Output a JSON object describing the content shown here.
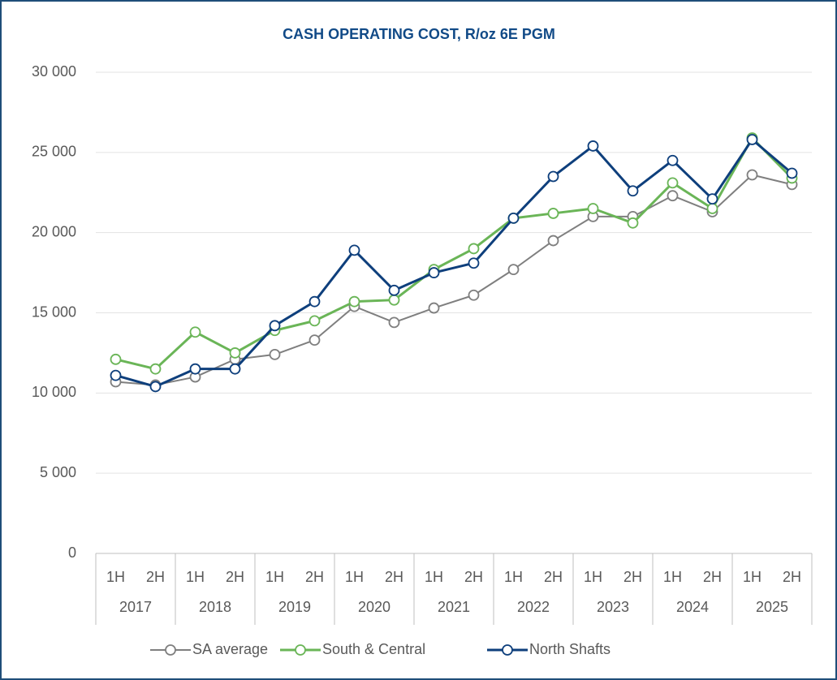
{
  "chart_data": {
    "type": "line",
    "title": "CASH OPERATING COST, R/oz 6E PGM",
    "categories": [
      "1H",
      "2H",
      "1H",
      "2H",
      "1H",
      "2H",
      "1H",
      "2H",
      "1H",
      "2H",
      "1H",
      "2H",
      "1H",
      "2H",
      "1H",
      "2H",
      "1H",
      "2H"
    ],
    "category_groups": [
      "2017",
      "2018",
      "2019",
      "2020",
      "2021",
      "2022",
      "2023",
      "2024",
      "2025"
    ],
    "series": [
      {
        "name": "SA average",
        "color": "#7f7f7f",
        "values": [
          10700,
          10500,
          11000,
          12100,
          12400,
          13300,
          15400,
          14400,
          15300,
          16100,
          17700,
          19500,
          21000,
          21000,
          22300,
          21300,
          23600,
          23000
        ]
      },
      {
        "name": "South & Central",
        "color": "#6ab557",
        "values": [
          12100,
          11500,
          13800,
          12500,
          13900,
          14500,
          15700,
          15800,
          17700,
          19000,
          20900,
          21200,
          21500,
          20600,
          23100,
          21500,
          25900,
          23400
        ]
      },
      {
        "name": "North Shafts",
        "color": "#0e3f7c",
        "values": [
          11100,
          10400,
          11500,
          11500,
          14200,
          15700,
          18900,
          16400,
          17500,
          18100,
          20900,
          23500,
          25400,
          22600,
          24500,
          22100,
          25800,
          23700
        ]
      }
    ],
    "ylim": [
      0,
      30000
    ],
    "yticks": [
      0,
      {
        "value": 5000,
        "label": "5 000"
      },
      {
        "value": 10000,
        "label": "10 000"
      },
      {
        "value": 15000,
        "label": "15 000"
      },
      {
        "value": 20000,
        "label": "20 000"
      },
      {
        "value": 25000,
        "label": "25 000"
      },
      {
        "value": 30000,
        "label": "30 000"
      }
    ],
    "grid": true,
    "legend": "bottom"
  }
}
